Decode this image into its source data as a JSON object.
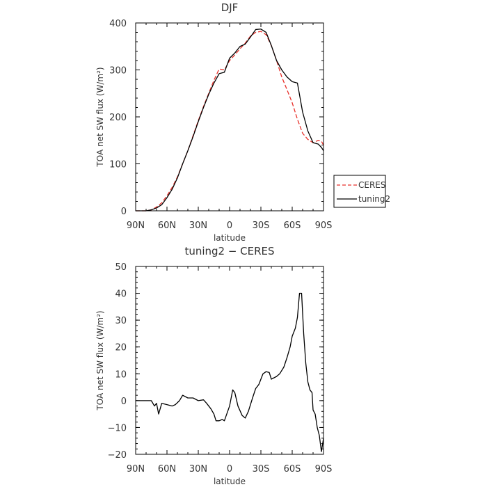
{
  "chart_data": [
    {
      "type": "line",
      "title": "DJF",
      "xlabel": "latitude",
      "ylabel": "TOA net SW flux (W/m²)",
      "xlim": [
        90,
        -90
      ],
      "ylim": [
        0,
        400
      ],
      "x_ticks": [
        90,
        60,
        30,
        0,
        -30,
        -60,
        -90
      ],
      "x_tick_labels": [
        "90N",
        "60N",
        "30N",
        "0",
        "30S",
        "60S",
        "90S"
      ],
      "y_ticks": [
        0,
        100,
        200,
        300,
        400
      ],
      "y_tick_labels": [
        "0",
        "100",
        "200",
        "300",
        "400"
      ],
      "legend": {
        "placement": "right-outside",
        "entries": [
          "CERES",
          "tuning2"
        ]
      },
      "series": [
        {
          "name": "CERES",
          "color": "#e8302a",
          "dash": "dashed",
          "x": [
            90,
            85,
            80,
            75,
            70,
            65,
            60,
            55,
            50,
            45,
            40,
            35,
            30,
            25,
            20,
            15,
            10,
            5,
            0,
            -5,
            -10,
            -15,
            -20,
            -25,
            -30,
            -35,
            -40,
            -45,
            -50,
            -55,
            -60,
            -65,
            -70,
            -75,
            -80,
            -85,
            -88,
            -90
          ],
          "y": [
            0,
            0,
            0,
            2,
            8,
            17,
            32,
            50,
            72,
            100,
            128,
            160,
            192,
            222,
            250,
            278,
            302,
            300,
            320,
            332,
            345,
            357,
            372,
            380,
            382,
            375,
            352,
            320,
            285,
            258,
            230,
            195,
            165,
            152,
            145,
            150,
            148,
            140
          ]
        },
        {
          "name": "tuning2",
          "color": "#000000",
          "dash": "solid",
          "x": [
            90,
            85,
            80,
            75,
            70,
            65,
            60,
            55,
            50,
            45,
            40,
            35,
            30,
            25,
            20,
            15,
            10,
            5,
            0,
            -5,
            -10,
            -15,
            -20,
            -25,
            -30,
            -35,
            -40,
            -45,
            -50,
            -55,
            -60,
            -65,
            -70,
            -75,
            -80,
            -85,
            -88,
            -90
          ],
          "y": [
            0,
            0,
            0,
            2,
            6,
            13,
            28,
            46,
            70,
            100,
            128,
            158,
            190,
            220,
            248,
            272,
            292,
            295,
            325,
            336,
            350,
            355,
            370,
            386,
            387,
            380,
            352,
            320,
            300,
            285,
            275,
            272,
            210,
            170,
            145,
            142,
            135,
            128
          ]
        }
      ]
    },
    {
      "type": "line",
      "title": "tuning2 − CERES",
      "xlabel": "latitude",
      "ylabel": "TOA net SW flux (W/m²)",
      "xlim": [
        90,
        -90
      ],
      "ylim": [
        -20,
        50
      ],
      "x_ticks": [
        90,
        60,
        30,
        0,
        -30,
        -60,
        -90
      ],
      "x_tick_labels": [
        "90N",
        "60N",
        "30N",
        "0",
        "30S",
        "60S",
        "90S"
      ],
      "y_ticks": [
        -20,
        -10,
        0,
        10,
        20,
        30,
        40,
        50
      ],
      "y_tick_labels": [
        "−20",
        "−10",
        "0",
        "10",
        "20",
        "30",
        "40",
        "50"
      ],
      "series": [
        {
          "color": "#000000",
          "dash": "solid",
          "x": [
            90,
            82,
            75,
            72,
            70,
            68,
            65,
            60,
            55,
            52,
            48,
            45,
            40,
            35,
            30,
            25,
            22,
            18,
            15,
            13,
            10,
            7,
            5,
            0,
            -3,
            -5,
            -8,
            -12,
            -15,
            -18,
            -22,
            -25,
            -28,
            -32,
            -35,
            -38,
            -40,
            -45,
            -48,
            -52,
            -55,
            -58,
            -60,
            -63,
            -65,
            -67,
            -69,
            -71,
            -73,
            -75,
            -77,
            -79,
            -80,
            -82,
            -84,
            -86,
            -88,
            -90
          ],
          "y": [
            0,
            0,
            0,
            -2,
            -1,
            -5,
            -1,
            -1.5,
            -2,
            -1.5,
            0,
            2,
            1,
            1,
            0,
            0.3,
            -1,
            -3,
            -5,
            -7.5,
            -7.5,
            -7,
            -7.5,
            -2,
            4,
            3,
            -2,
            -5.5,
            -6.5,
            -4,
            1,
            4.5,
            6,
            10,
            10.8,
            10.5,
            8,
            9,
            10,
            12.5,
            16,
            20,
            24,
            27,
            31,
            40,
            40,
            25,
            14,
            7,
            4,
            3,
            -3.5,
            -5,
            -10,
            -13,
            -19,
            -14
          ]
        }
      ]
    }
  ]
}
